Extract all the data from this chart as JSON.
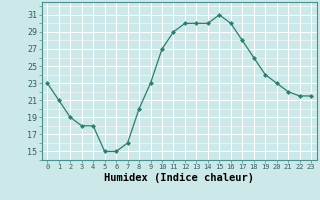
{
  "x": [
    0,
    1,
    2,
    3,
    4,
    5,
    6,
    7,
    8,
    9,
    10,
    11,
    12,
    13,
    14,
    15,
    16,
    17,
    18,
    19,
    20,
    21,
    22,
    23
  ],
  "y": [
    23,
    21,
    19,
    18,
    18,
    15,
    15,
    16,
    20,
    23,
    27,
    29,
    30,
    30,
    30,
    31,
    30,
    28,
    26,
    24,
    23,
    22,
    21.5,
    21.5
  ],
  "line_color": "#2e7d6e",
  "marker": "D",
  "marker_size": 2,
  "bg_color": "#cce8e8",
  "grid_color": "#ffffff",
  "xlabel": "Humidex (Indice chaleur)",
  "xlabel_fontsize": 7.5,
  "ylabel_ticks": [
    15,
    17,
    19,
    21,
    23,
    25,
    27,
    29,
    31
  ],
  "ylim": [
    14,
    32.5
  ],
  "xlim": [
    -0.5,
    23.5
  ],
  "ytick_fontsize": 6,
  "xtick_fontsize": 5
}
